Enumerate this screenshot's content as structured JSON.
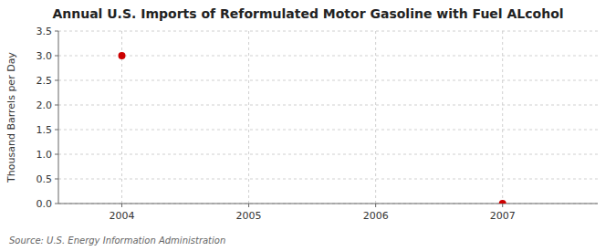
{
  "chart_data": {
    "type": "scatter",
    "title": "Annual U.S. Imports of Reformulated Motor Gasoline with Fuel ALcohol",
    "ylabel": "Thousand Barrels per Day",
    "source": "Source: U.S. Energy Information Administration",
    "x": [
      2004,
      2007
    ],
    "values": [
      3.0,
      0.0
    ],
    "color": "#cc0000",
    "marker": "circle",
    "xlim": [
      2003.5,
      2007.75
    ],
    "ylim": [
      0.0,
      3.5
    ],
    "xticks": [
      2004,
      2005,
      2006,
      2007
    ],
    "yticks": [
      {
        "value": 0,
        "label": "0.0"
      },
      0.5,
      {
        "value": 1,
        "label": "1.0"
      },
      1.5,
      {
        "value": 2,
        "label": "2.0"
      },
      2.5,
      {
        "value": 3,
        "label": "3.0"
      },
      3.5
    ],
    "grid": true
  }
}
